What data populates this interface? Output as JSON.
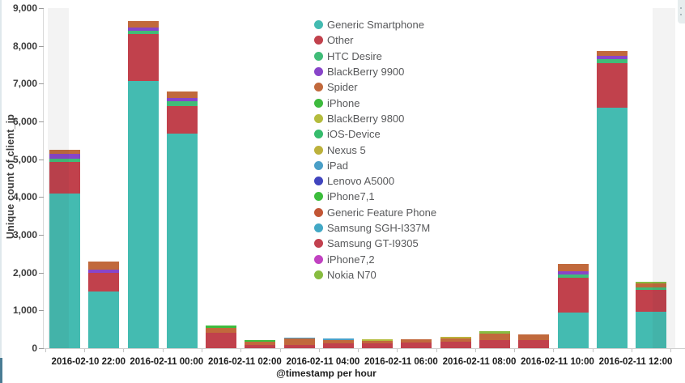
{
  "panel": {
    "y_axis_title": "Unique count of client_ip",
    "x_axis_title": "@timestamp per hour"
  },
  "chart_data": {
    "type": "bar",
    "stacked": true,
    "title": "",
    "ylabel": "Unique count of client_ip",
    "xlabel": "@timestamp per hour",
    "ylim": [
      0,
      9000
    ],
    "y_ticks": [
      0,
      1000,
      2000,
      3000,
      4000,
      5000,
      6000,
      7000,
      8000,
      9000
    ],
    "grid": false,
    "legend_position": "inside-top-right",
    "x_tick_labels": [
      "2016-02-10 22:00",
      "2016-02-11 00:00",
      "2016-02-11 02:00",
      "2016-02-11 04:00",
      "2016-02-11 06:00",
      "2016-02-11 08:00",
      "2016-02-11 10:00",
      "2016-02-11 12:00"
    ],
    "series_colors": {
      "Generic Smartphone": "#44bbb1",
      "Other": "#c1414c",
      "HTC Desire": "#40bc78",
      "BlackBerry 9900": "#8845c9",
      "Spider": "#c1693c",
      "iPhone": "#3ebb3e",
      "BlackBerry 9800": "#b4bc3d",
      "iOS-Device": "#36bc6c",
      "Nexus 5": "#bcb13c",
      "iPad": "#4a9fc7",
      "Lenovo A5000": "#4145be",
      "iPhone7,1": "#3cbd3c",
      "Generic Feature Phone": "#c25635",
      "Samsung SGH-I337M": "#42a8c5",
      "Samsung GT-I9305": "#c2414f",
      "iPhone7,2": "#c142c1",
      "Nokia N70": "#87bc40"
    },
    "legend": [
      "Generic Smartphone",
      "Other",
      "HTC Desire",
      "BlackBerry 9900",
      "Spider",
      "iPhone",
      "BlackBerry 9800",
      "iOS-Device",
      "Nexus 5",
      "iPad",
      "Lenovo A5000",
      "iPhone7,1",
      "Generic Feature Phone",
      "Samsung SGH-I337M",
      "Samsung GT-I9305",
      "iPhone7,2",
      "Nokia N70"
    ],
    "bars": [
      {
        "x": "2016-02-10 21:00",
        "total": 5250,
        "segments": [
          [
            "Generic Smartphone",
            4100
          ],
          [
            "Other",
            820
          ],
          [
            "HTC Desire",
            100
          ],
          [
            "BlackBerry 9900",
            130
          ],
          [
            "Spider",
            100
          ]
        ]
      },
      {
        "x": "2016-02-10 22:00",
        "total": 2300,
        "segments": [
          [
            "Generic Smartphone",
            1510
          ],
          [
            "Other",
            490
          ],
          [
            "BlackBerry 9900",
            70
          ],
          [
            "Spider",
            230
          ]
        ]
      },
      {
        "x": "2016-02-10 23:00",
        "total": 8650,
        "segments": [
          [
            "Generic Smartphone",
            7070
          ],
          [
            "Other",
            1250
          ],
          [
            "HTC Desire",
            85
          ],
          [
            "BlackBerry 9900",
            85
          ],
          [
            "Spider",
            160
          ]
        ]
      },
      {
        "x": "2016-02-11 00:00",
        "total": 6800,
        "segments": [
          [
            "Generic Smartphone",
            5670
          ],
          [
            "Other",
            740
          ],
          [
            "HTC Desire",
            130
          ],
          [
            "BlackBerry 9900",
            90
          ],
          [
            "Spider",
            170
          ]
        ]
      },
      {
        "x": "2016-02-11 01:00",
        "total": 595,
        "segments": [
          [
            "Other",
            400
          ],
          [
            "Spider",
            140
          ],
          [
            "iPhone",
            55
          ]
        ]
      },
      {
        "x": "2016-02-11 02:00",
        "total": 220,
        "segments": [
          [
            "Other",
            90
          ],
          [
            "Spider",
            80
          ],
          [
            "iPhone",
            50
          ]
        ]
      },
      {
        "x": "2016-02-11 03:00",
        "total": 290,
        "segments": [
          [
            "Other",
            95
          ],
          [
            "Spider",
            155
          ],
          [
            "iPad",
            40
          ]
        ]
      },
      {
        "x": "2016-02-11 04:00",
        "total": 250,
        "segments": [
          [
            "Other",
            135
          ],
          [
            "Spider",
            70
          ],
          [
            "iPad",
            45
          ]
        ]
      },
      {
        "x": "2016-02-11 05:00",
        "total": 230,
        "segments": [
          [
            "Other",
            135
          ],
          [
            "Spider",
            55
          ],
          [
            "BlackBerry 9800",
            40
          ]
        ]
      },
      {
        "x": "2016-02-11 06:00",
        "total": 240,
        "segments": [
          [
            "Other",
            150
          ],
          [
            "Spider",
            90
          ]
        ]
      },
      {
        "x": "2016-02-11 07:00",
        "total": 305,
        "segments": [
          [
            "Other",
            165
          ],
          [
            "Spider",
            100
          ],
          [
            "Nexus 5",
            40
          ]
        ]
      },
      {
        "x": "2016-02-11 08:00",
        "total": 440,
        "segments": [
          [
            "Other",
            205
          ],
          [
            "Spider",
            190
          ],
          [
            "Nokia N70",
            45
          ]
        ]
      },
      {
        "x": "2016-02-11 09:00",
        "total": 360,
        "segments": [
          [
            "Other",
            225
          ],
          [
            "Spider",
            135
          ]
        ]
      },
      {
        "x": "2016-02-11 10:00",
        "total": 2240,
        "segments": [
          [
            "Generic Smartphone",
            950
          ],
          [
            "Other",
            920
          ],
          [
            "HTC Desire",
            90
          ],
          [
            "BlackBerry 9900",
            85
          ],
          [
            "Spider",
            195
          ]
        ]
      },
      {
        "x": "2016-02-11 11:00",
        "total": 7860,
        "segments": [
          [
            "Generic Smartphone",
            6370
          ],
          [
            "Other",
            1175
          ],
          [
            "HTC Desire",
            100
          ],
          [
            "BlackBerry 9900",
            85
          ],
          [
            "Spider",
            130
          ]
        ]
      },
      {
        "x": "2016-02-11 12:00",
        "total": 1760,
        "segments": [
          [
            "Generic Smartphone",
            970
          ],
          [
            "Other",
            570
          ],
          [
            "HTC Desire",
            75
          ],
          [
            "Spider",
            95
          ],
          [
            "Nokia N70",
            50
          ]
        ]
      }
    ]
  }
}
